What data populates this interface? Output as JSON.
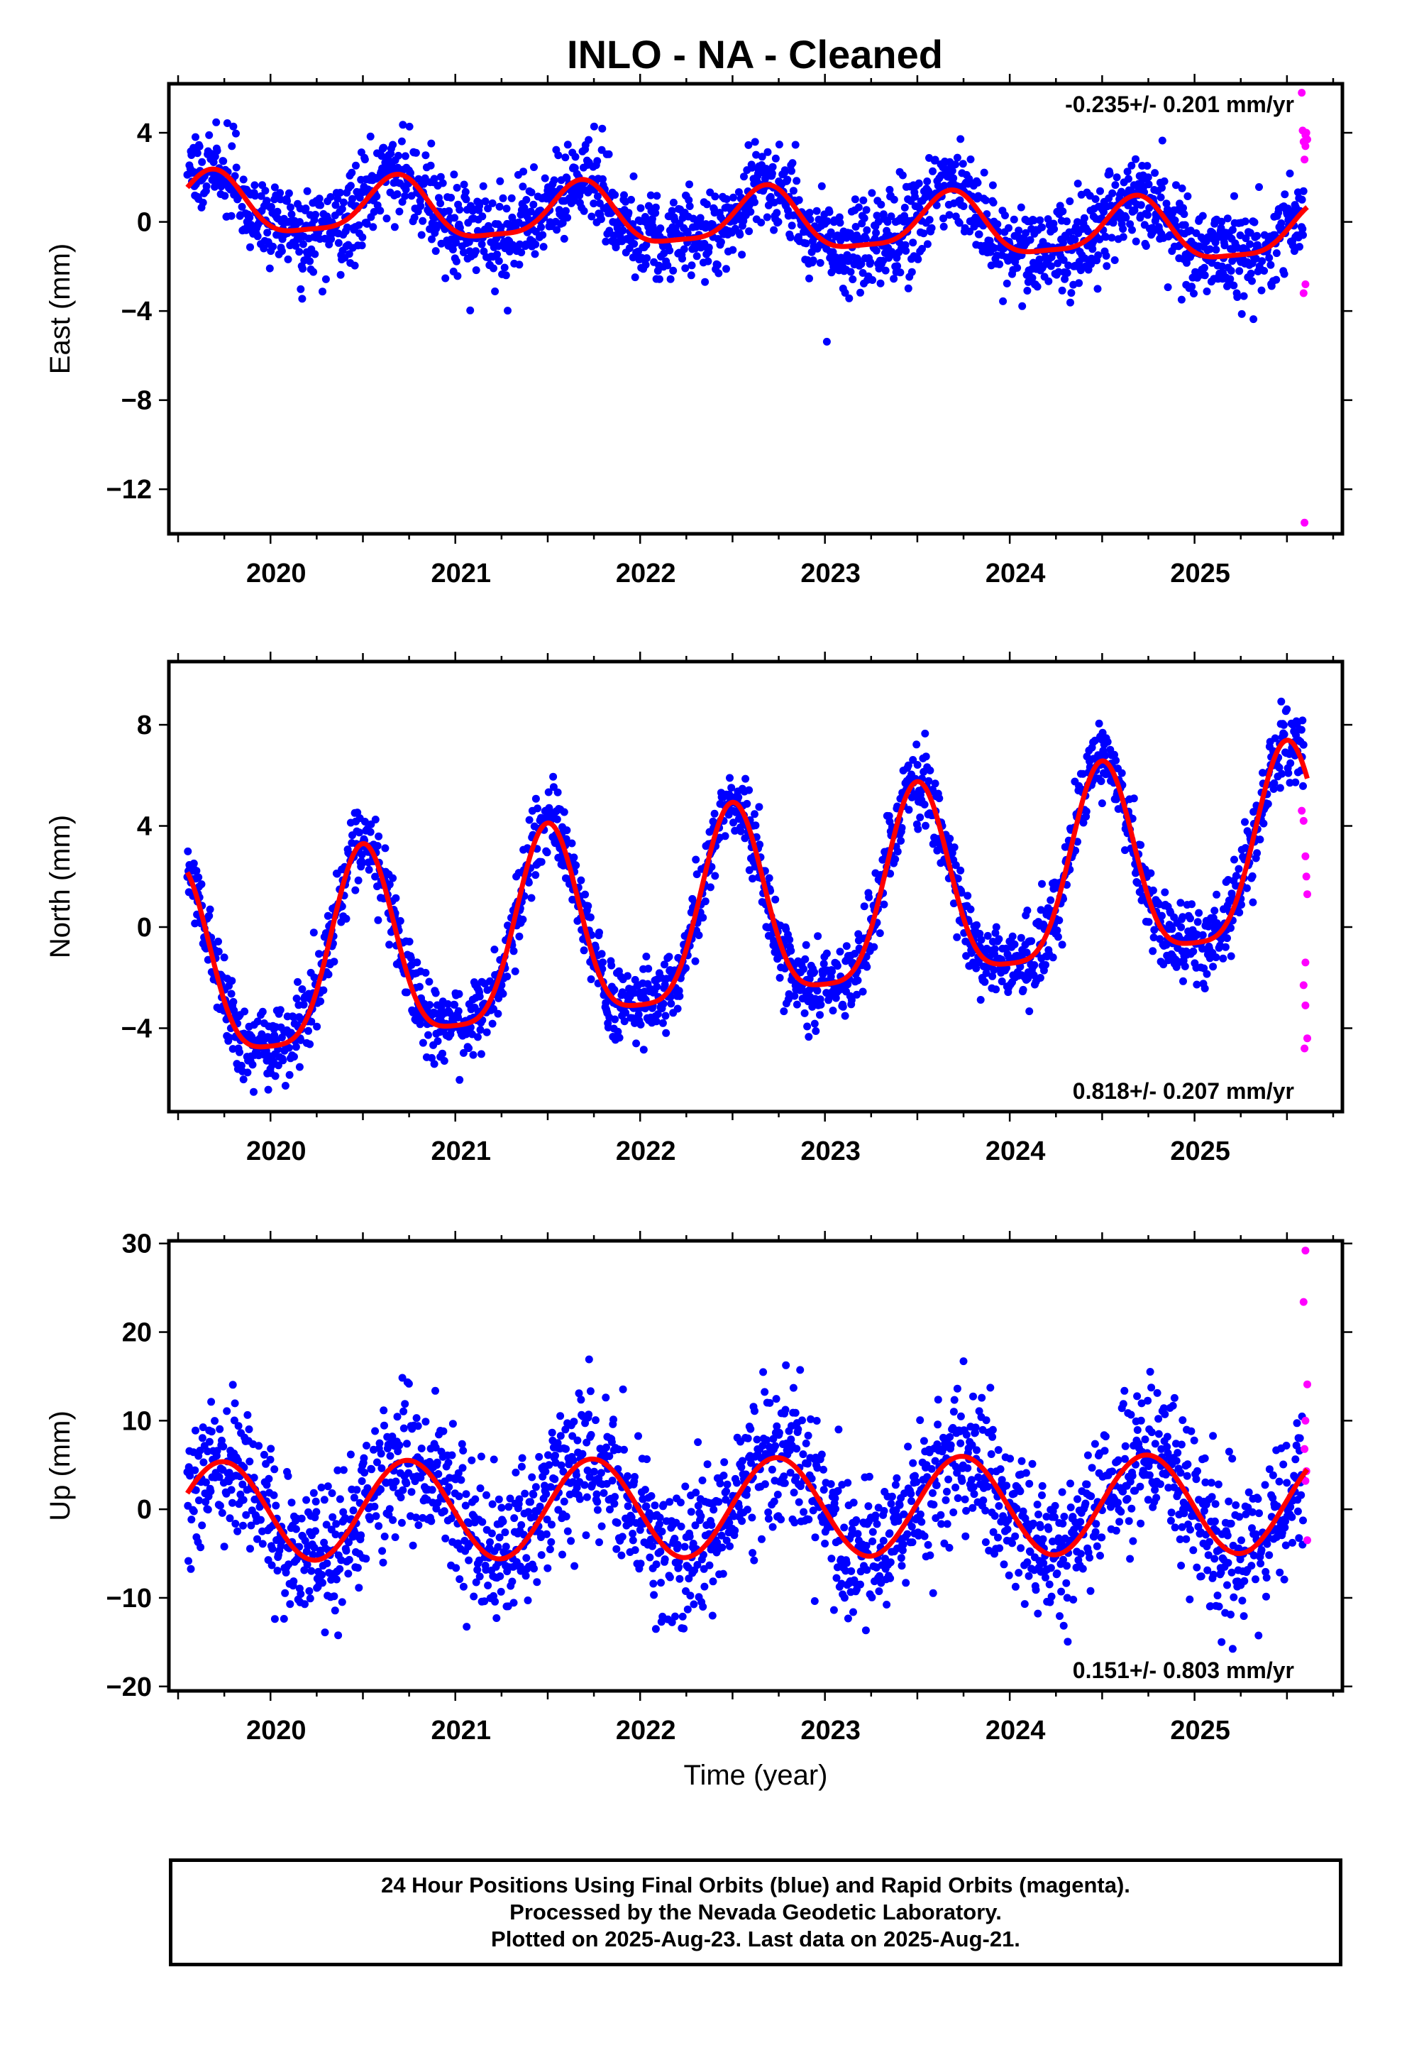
{
  "title": "INLO  - NA - Cleaned",
  "footer": {
    "line1": "24 Hour Positions Using Final Orbits (blue) and Rapid Orbits (magenta).",
    "line2": "Processed by the Nevada Geodetic Laboratory.",
    "line3": "Plotted on 2025-Aug-23. Last data on 2025-Aug-21."
  },
  "colors": {
    "final": "#0000ff",
    "rapid": "#ff00ff",
    "model": "#ff0000",
    "frame": "#000000"
  },
  "chart_data": [
    {
      "type": "scatter",
      "component": "east",
      "ylabel": "East (mm)",
      "xlabel": "",
      "rate_text": "-0.235+/- 0.201 mm/yr",
      "rate_position": "top-right",
      "xlim": [
        2019.45,
        2025.8
      ],
      "ylim": [
        -14,
        6.2
      ],
      "xticks": [
        2020,
        2021,
        2022,
        2023,
        2024,
        2025
      ],
      "yticks": [
        4,
        0,
        -4,
        -8,
        -12
      ],
      "ytick_labels": [
        "4",
        "0",
        "−4",
        "−8",
        "−12"
      ],
      "x_start": 2019.55,
      "x_end": 2025.61,
      "model": {
        "slope": -0.235,
        "mean": 0.05,
        "annual_amp": 1.3,
        "annual_peak": 0.68,
        "semiannual_amp": 0.35,
        "semiannual_peak": 0.2
      },
      "noise_sd": 1.0,
      "rapid_points": {
        "x": [
          2025.58,
          2025.585,
          2025.59,
          2025.595,
          2025.6,
          2025.605,
          2025.61,
          2025.6,
          2025.59,
          2025.595,
          2025.6
        ],
        "y": [
          5.8,
          4.1,
          3.6,
          2.8,
          3.9,
          4.0,
          3.7,
          -2.8,
          -3.2,
          -13.5,
          3.4
        ]
      },
      "grid": false
    },
    {
      "type": "scatter",
      "component": "north",
      "ylabel": "North (mm)",
      "xlabel": "",
      "rate_text": "0.818+/- 0.207 mm/yr",
      "rate_position": "bottom-right",
      "xlim": [
        2019.45,
        2025.8
      ],
      "ylim": [
        -7.3,
        10.5
      ],
      "xticks": [
        2020,
        2021,
        2022,
        2023,
        2024,
        2025
      ],
      "yticks": [
        8,
        4,
        0,
        -4
      ],
      "ytick_labels": [
        "8",
        "4",
        "0",
        "−4"
      ],
      "x_start": 2019.55,
      "x_end": 2025.61,
      "model": {
        "slope": 0.818,
        "mean": 0.3,
        "annual_amp": 3.8,
        "annual_peak": 0.5,
        "semiannual_amp": 0.9,
        "semiannual_peak": 0.5
      },
      "noise_sd": 0.75,
      "rapid_points": {
        "x": [
          2025.58,
          2025.59,
          2025.6,
          2025.605,
          2025.61,
          2025.6,
          2025.59,
          2025.6,
          2025.61,
          2025.595
        ],
        "y": [
          4.6,
          4.2,
          2.8,
          2.0,
          1.3,
          -1.4,
          -2.3,
          -3.1,
          -4.4,
          -4.8
        ]
      },
      "grid": false
    },
    {
      "type": "scatter",
      "component": "up",
      "ylabel": "Up (mm)",
      "xlabel": "Time (year)",
      "rate_text": "0.151+/- 0.803 mm/yr",
      "rate_position": "bottom-right",
      "xlim": [
        2019.45,
        2025.8
      ],
      "ylim": [
        -20.5,
        30.3
      ],
      "xticks": [
        2020,
        2021,
        2022,
        2023,
        2024,
        2025
      ],
      "yticks": [
        30,
        20,
        10,
        0,
        -10,
        -20
      ],
      "ytick_labels": [
        "30",
        "20",
        "10",
        "0",
        "−10",
        "−20"
      ],
      "x_start": 2019.55,
      "x_end": 2025.61,
      "model": {
        "slope": 0.151,
        "mean": 0.2,
        "annual_amp": 5.6,
        "annual_peak": 0.74,
        "semiannual_amp": 0.0,
        "semiannual_peak": 0.0
      },
      "noise_sd": 4.0,
      "rapid_points": {
        "x": [
          2025.6,
          2025.59,
          2025.61,
          2025.6,
          2025.595,
          2025.605,
          2025.6,
          2025.61
        ],
        "y": [
          29.2,
          23.4,
          14.1,
          10.0,
          6.8,
          4.3,
          3.2,
          -3.5
        ]
      },
      "grid": false
    }
  ]
}
